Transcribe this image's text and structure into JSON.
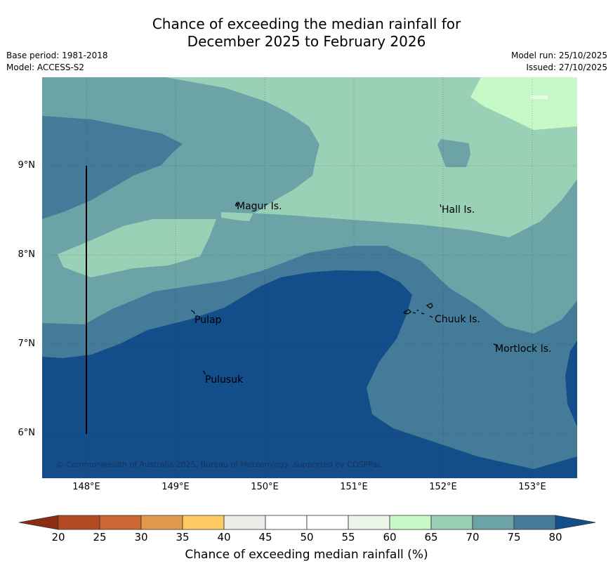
{
  "title": {
    "line1": "Chance of exceeding the median rainfall for",
    "line2": "December 2025 to February 2026"
  },
  "meta": {
    "base_period": "Base period: 1981-2018",
    "model": "Model: ACCESS-S2",
    "model_run": "Model run: 25/10/2025",
    "issued": "Issued: 27/10/2025"
  },
  "map": {
    "lat_ticks": [
      "9°N",
      "8°N",
      "7°N",
      "6°N"
    ],
    "lon_ticks": [
      "148°E",
      "149°E",
      "150°E",
      "151°E",
      "152°E",
      "153°E"
    ],
    "places": [
      "Magur Is.",
      "Hall Is.",
      "Pulap",
      "Chuuk Is.",
      "Mortlock Is.",
      "Pulusuk"
    ],
    "copyright": "© Commonwealth of Australia 2025, Bureau of Meteorology, supported by COSPPac"
  },
  "colorbar": {
    "title": "Chance of exceeding median rainfall (%)",
    "tick_labels": [
      "20",
      "25",
      "30",
      "35",
      "40",
      "45",
      "50",
      "55",
      "60",
      "65",
      "70",
      "75",
      "80"
    ],
    "colors": [
      "#8c2c12",
      "#b24a24",
      "#cd6632",
      "#e19a4c",
      "#fdca64",
      "#ecebe8",
      "#ffffff",
      "#ffffff",
      "#ebf5ea",
      "#c7f9c8",
      "#9ad0b6",
      "#6ba3a6",
      "#437b98",
      "#134d8a"
    ],
    "ocean_color": "#000000"
  }
}
